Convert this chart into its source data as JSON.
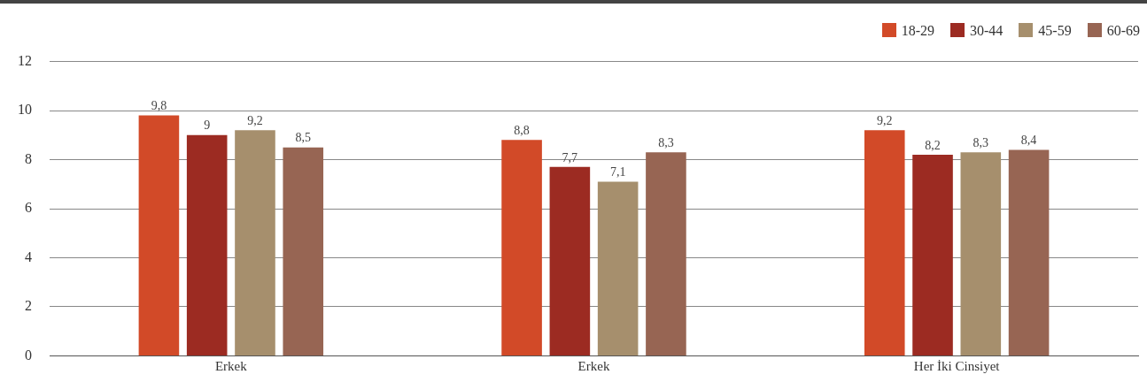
{
  "chart_data": {
    "type": "bar",
    "categories": [
      "Erkek",
      "Erkek",
      "Her İki Cinsiyet"
    ],
    "series": [
      {
        "name": "18-29",
        "color": "#d24a28",
        "values": [
          9.8,
          8.8,
          9.2
        ],
        "value_labels": [
          "9,8",
          "8,8",
          "9,2"
        ]
      },
      {
        "name": "30-44",
        "color": "#9c2b22",
        "values": [
          9,
          7.7,
          8.2
        ],
        "value_labels": [
          "9",
          "7,7",
          "8,2"
        ]
      },
      {
        "name": "45-59",
        "color": "#a68f6d",
        "values": [
          9.2,
          7.1,
          8.3
        ],
        "value_labels": [
          "9,2",
          "7,1",
          "8,3"
        ]
      },
      {
        "name": "60-69",
        "color": "#976553",
        "values": [
          8.5,
          8.3,
          8.4
        ],
        "value_labels": [
          "8,5",
          "8,3",
          "8,4"
        ]
      }
    ],
    "ylim": [
      0,
      12
    ],
    "yticks": [
      0,
      2,
      4,
      6,
      8,
      10,
      12
    ],
    "grid": "y",
    "legend": "top right"
  }
}
